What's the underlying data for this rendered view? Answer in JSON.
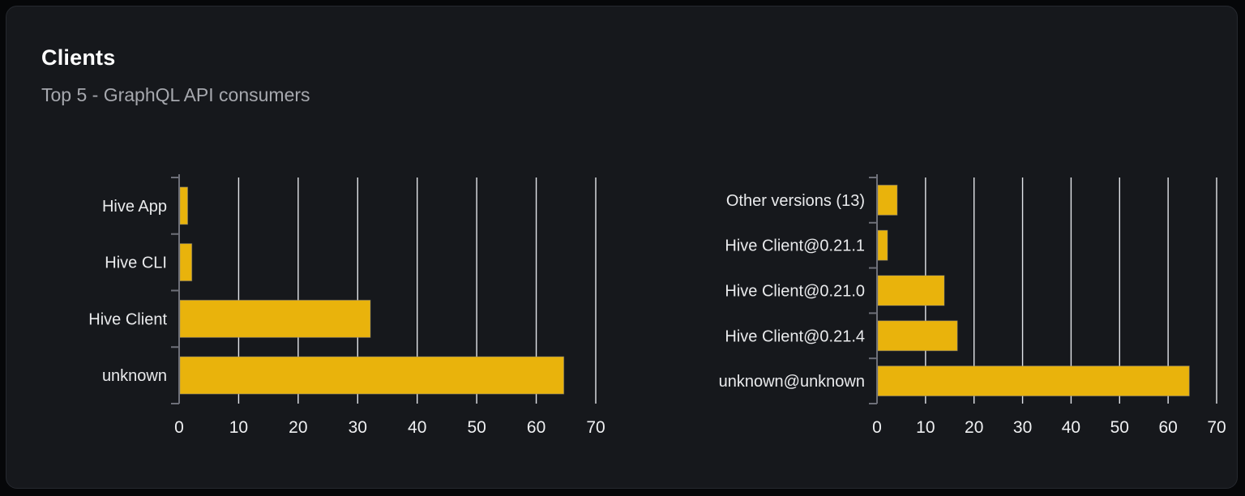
{
  "card": {
    "title": "Clients",
    "subtitle": "Top 5 - GraphQL API consumers"
  },
  "colors": {
    "page_bg": "#060709",
    "card_bg": "#16181c",
    "card_border": "#26292f",
    "title_text": "#ffffff",
    "subtitle_text": "#a6a8ae",
    "bar_fill": "#e9b30c",
    "bar_stroke": "#85878d",
    "grid_line": "#e3e5ea",
    "axis_line": "#6e7079",
    "category_text": "#e9eaec",
    "tick_text": "#eff0f2"
  },
  "chart_data": [
    {
      "type": "bar",
      "orientation": "horizontal",
      "title": "",
      "xlabel": "",
      "ylabel": "",
      "order": "top-to-bottom",
      "categories": [
        "Hive App",
        "Hive CLI",
        "Hive Client",
        "unknown"
      ],
      "values": [
        1.3,
        2,
        32,
        64.5
      ],
      "x_ticks": [
        0,
        10,
        20,
        30,
        40,
        50,
        60,
        70
      ],
      "xlim": [
        0,
        70
      ],
      "grid": true,
      "legend": false,
      "bar_color": "#e9b30c"
    },
    {
      "type": "bar",
      "orientation": "horizontal",
      "title": "",
      "xlabel": "",
      "ylabel": "",
      "order": "top-to-bottom",
      "categories": [
        "Other versions (13)",
        "Hive Client@0.21.1",
        "Hive Client@0.21.0",
        "Hive Client@0.21.4",
        "unknown@unknown"
      ],
      "values": [
        4,
        2,
        13.7,
        16.4,
        64.2
      ],
      "x_ticks": [
        0,
        10,
        20,
        30,
        40,
        50,
        60,
        70
      ],
      "xlim": [
        0,
        70
      ],
      "grid": true,
      "legend": false,
      "bar_color": "#e9b30c"
    }
  ]
}
